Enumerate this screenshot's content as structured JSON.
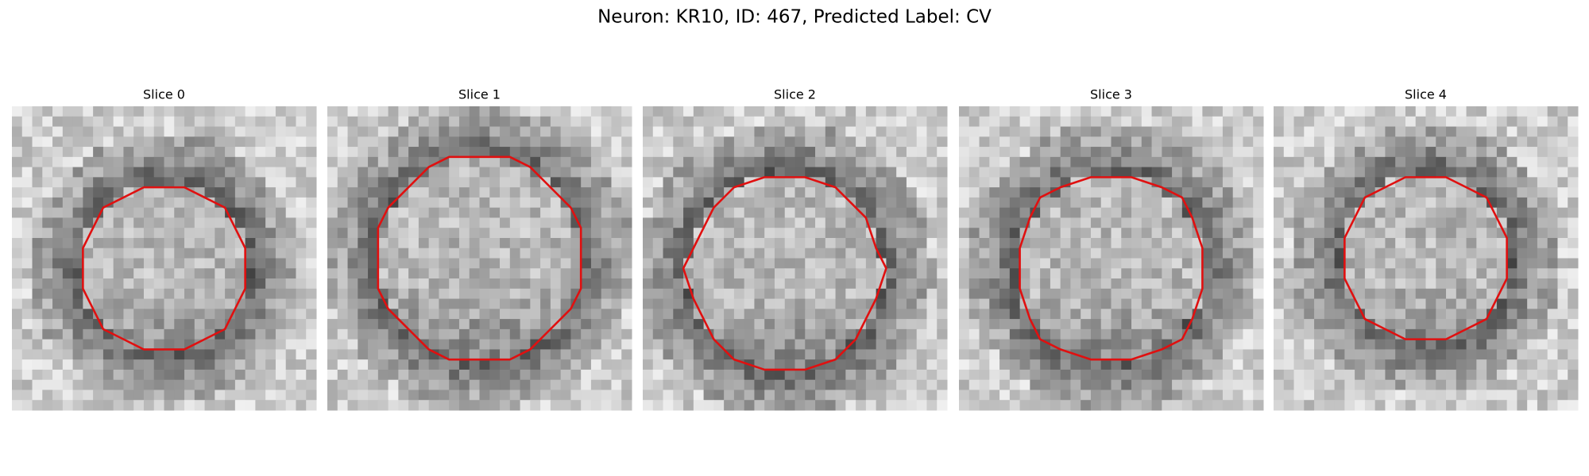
{
  "figure": {
    "title": "Neuron: KR10, ID: 467, Predicted Label: CV",
    "panels": [
      {
        "title": "Slice 0"
      },
      {
        "title": "Slice 1"
      },
      {
        "title": "Slice 2"
      },
      {
        "title": "Slice 3"
      },
      {
        "title": "Slice 4"
      }
    ]
  }
}
